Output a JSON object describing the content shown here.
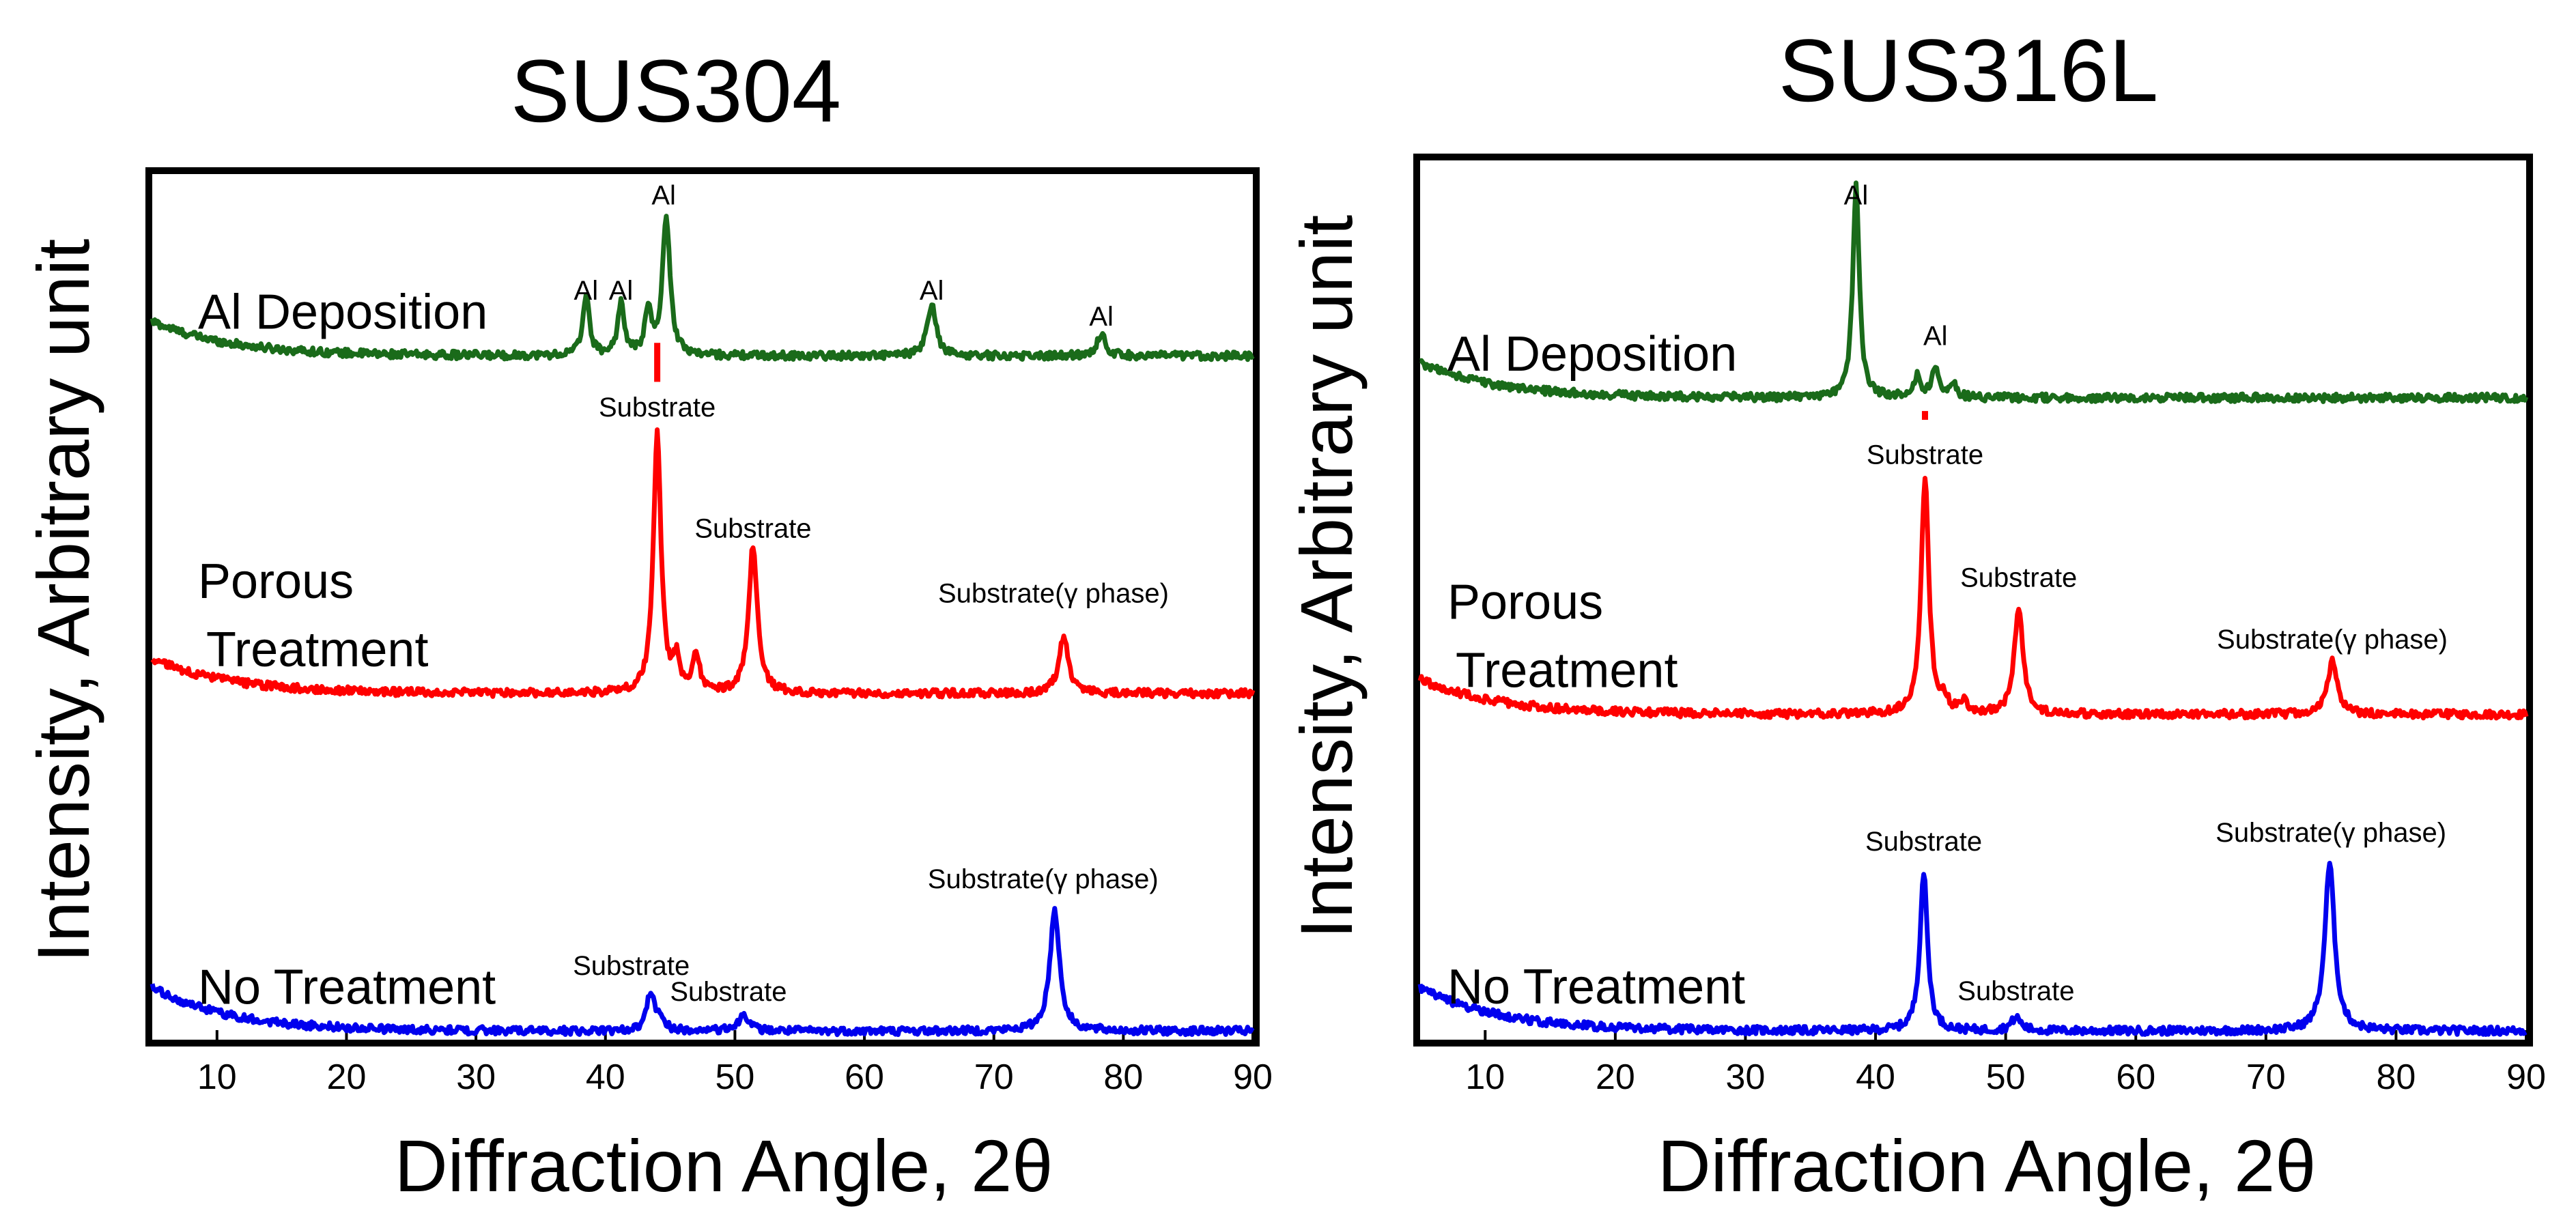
{
  "figure": {
    "y_axis_label": "Intensity, Arbitrary unit",
    "x_axis_label": "Diffraction Angle, 2θ"
  },
  "chart_data": [
    {
      "type": "line",
      "title": "SUS304",
      "xlabel": "Diffraction Angle, 2θ",
      "ylabel": "Intensity, Arbitrary unit",
      "xlim": [
        5,
        90
      ],
      "ylim": [
        0,
        100
      ],
      "xticks": [
        10,
        20,
        30,
        40,
        50,
        60,
        70,
        80,
        90
      ],
      "grid": false,
      "series": [
        {
          "name": "Al Deposition",
          "label_lines": [
            "Al Deposition"
          ],
          "color": "#1a6b1a",
          "baseline": 79,
          "start_rise": 4,
          "peaks": [
            {
              "x": 38.5,
              "h": 7,
              "w": 0.3
            },
            {
              "x": 41.2,
              "h": 6,
              "w": 0.3
            },
            {
              "x": 43.3,
              "h": 5,
              "w": 0.3
            },
            {
              "x": 44.7,
              "h": 16,
              "w": 0.35
            },
            {
              "x": 65.2,
              "h": 6,
              "w": 0.4
            },
            {
              "x": 78.3,
              "h": 2.5,
              "w": 0.4
            }
          ]
        },
        {
          "name": "Porous Treatment",
          "label_lines": [
            "Porous",
            "Treatment"
          ],
          "color": "#ff0000",
          "baseline": 40,
          "start_rise": 4,
          "peaks": [
            {
              "x": 44.0,
              "h": 30,
              "w": 0.35
            },
            {
              "x": 45.5,
              "h": 3.5,
              "w": 0.3
            },
            {
              "x": 47.0,
              "h": 4.5,
              "w": 0.3
            },
            {
              "x": 51.4,
              "h": 17,
              "w": 0.4
            },
            {
              "x": 75.4,
              "h": 6.5,
              "w": 0.45
            }
          ]
        },
        {
          "name": "No Treatment",
          "label_lines": [
            "No Treatment"
          ],
          "color": "#0000ee",
          "baseline": 1,
          "start_rise": 5,
          "peaks": [
            {
              "x": 43.5,
              "h": 4.5,
              "w": 0.35
            },
            {
              "x": 44.3,
              "h": 1.5,
              "w": 0.3
            },
            {
              "x": 50.7,
              "h": 2,
              "w": 0.45
            },
            {
              "x": 74.7,
              "h": 14,
              "w": 0.45
            }
          ]
        }
      ],
      "annotations": [
        {
          "text": "Al",
          "x": 38.5,
          "y": 85.5
        },
        {
          "text": "Al",
          "x": 41.2,
          "y": 85.5
        },
        {
          "text": "Al",
          "x": 44.5,
          "y": 96.5
        },
        {
          "text": "Al",
          "x": 65.2,
          "y": 85.5
        },
        {
          "text": "Al",
          "x": 78.3,
          "y": 82.5
        },
        {
          "text": "Substrate",
          "x": 44.0,
          "y": 72
        },
        {
          "text": "Substrate",
          "x": 51.4,
          "y": 58
        },
        {
          "text": "Substrate(γ phase)",
          "x": 74.6,
          "y": 50.5
        },
        {
          "text": "Substrate(γ phase)",
          "x": 73.8,
          "y": 17.5
        },
        {
          "text": "Substrate",
          "x": 42.0,
          "y": 7.5
        },
        {
          "text": "Substrate",
          "x": 49.5,
          "y": 4.5
        }
      ],
      "markers": [
        {
          "x": 44.0,
          "y1": 76,
          "y2": 80.5,
          "color": "#ff0000"
        }
      ]
    },
    {
      "type": "line",
      "title": "SUS316L",
      "xlabel": "Diffraction Angle, 2θ",
      "ylabel": "Intensity, Arbitrary unit",
      "xlim": [
        5,
        90
      ],
      "ylim": [
        0,
        100
      ],
      "xticks": [
        10,
        20,
        30,
        40,
        50,
        60,
        70,
        80,
        90
      ],
      "grid": false,
      "series": [
        {
          "name": "Al Deposition",
          "label_lines": [
            "Al Deposition"
          ],
          "color": "#1a6b1a",
          "baseline": 73,
          "start_rise": 4,
          "peaks": [
            {
              "x": 38.5,
              "h": 24,
              "w": 0.3
            },
            {
              "x": 43.2,
              "h": 2.5,
              "w": 0.3
            },
            {
              "x": 44.6,
              "h": 3.5,
              "w": 0.3
            },
            {
              "x": 46.0,
              "h": 1.5,
              "w": 0.3
            }
          ]
        },
        {
          "name": "Porous Treatment",
          "label_lines": [
            "Porous",
            "Treatment"
          ],
          "color": "#ff0000",
          "baseline": 37,
          "start_rise": 4,
          "peaks": [
            {
              "x": 43.8,
              "h": 27,
              "w": 0.35
            },
            {
              "x": 45.3,
              "h": 1.5,
              "w": 0.3
            },
            {
              "x": 46.8,
              "h": 1.5,
              "w": 0.3
            },
            {
              "x": 51.0,
              "h": 12,
              "w": 0.4
            },
            {
              "x": 75.1,
              "h": 6,
              "w": 0.45
            }
          ]
        },
        {
          "name": "No Treatment",
          "label_lines": [
            "No Treatment"
          ],
          "color": "#0000ee",
          "baseline": 1,
          "start_rise": 5,
          "peaks": [
            {
              "x": 43.7,
              "h": 18,
              "w": 0.35
            },
            {
              "x": 50.8,
              "h": 1.5,
              "w": 0.45
            },
            {
              "x": 74.9,
              "h": 19,
              "w": 0.45
            }
          ]
        }
      ],
      "annotations": [
        {
          "text": "Al",
          "x": 38.5,
          "y": 95
        },
        {
          "text": "Al",
          "x": 44.6,
          "y": 79
        },
        {
          "text": "Substrate",
          "x": 43.8,
          "y": 65.5
        },
        {
          "text": "Substrate",
          "x": 51.0,
          "y": 51.5
        },
        {
          "text": "Substrate(γ phase)",
          "x": 75.1,
          "y": 44.5
        },
        {
          "text": "Substrate",
          "x": 43.7,
          "y": 21.5
        },
        {
          "text": "Substrate(γ phase)",
          "x": 75.0,
          "y": 22.5
        },
        {
          "text": "Substrate",
          "x": 50.8,
          "y": 4.5
        }
      ],
      "markers": [
        {
          "x": 43.8,
          "y1": 70.5,
          "y2": 71.5,
          "color": "#ff0000"
        }
      ]
    }
  ]
}
